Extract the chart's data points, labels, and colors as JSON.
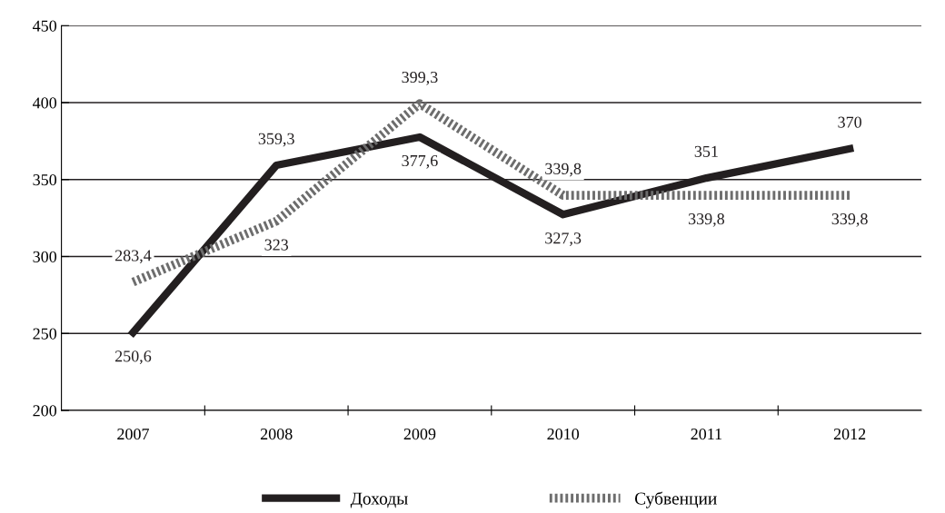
{
  "chart_data": {
    "type": "line",
    "categories": [
      "2007",
      "2008",
      "2009",
      "2010",
      "2011",
      "2012"
    ],
    "series": [
      {
        "name": "Доходы",
        "color": "#231f20",
        "values": [
          250.6,
          359.3,
          377.6,
          327.3,
          351,
          370
        ],
        "value_labels": [
          "250,6",
          "359,3",
          "377,6",
          "327,3",
          "351",
          "370"
        ],
        "line_style": "solid"
      },
      {
        "name": "Субвенции",
        "color": "#6d6d6d",
        "values": [
          283.4,
          323,
          399.3,
          339.8,
          339.8,
          339.8
        ],
        "value_labels": [
          "283,4",
          "323",
          "399,3",
          "339,8",
          "339,8",
          "339,8"
        ],
        "line_style": "dotted"
      }
    ],
    "ylim": [
      200,
      450
    ],
    "yticks": [
      200,
      250,
      300,
      350,
      400,
      450
    ],
    "grid": "y",
    "legend": "bottom",
    "marker": "none"
  }
}
